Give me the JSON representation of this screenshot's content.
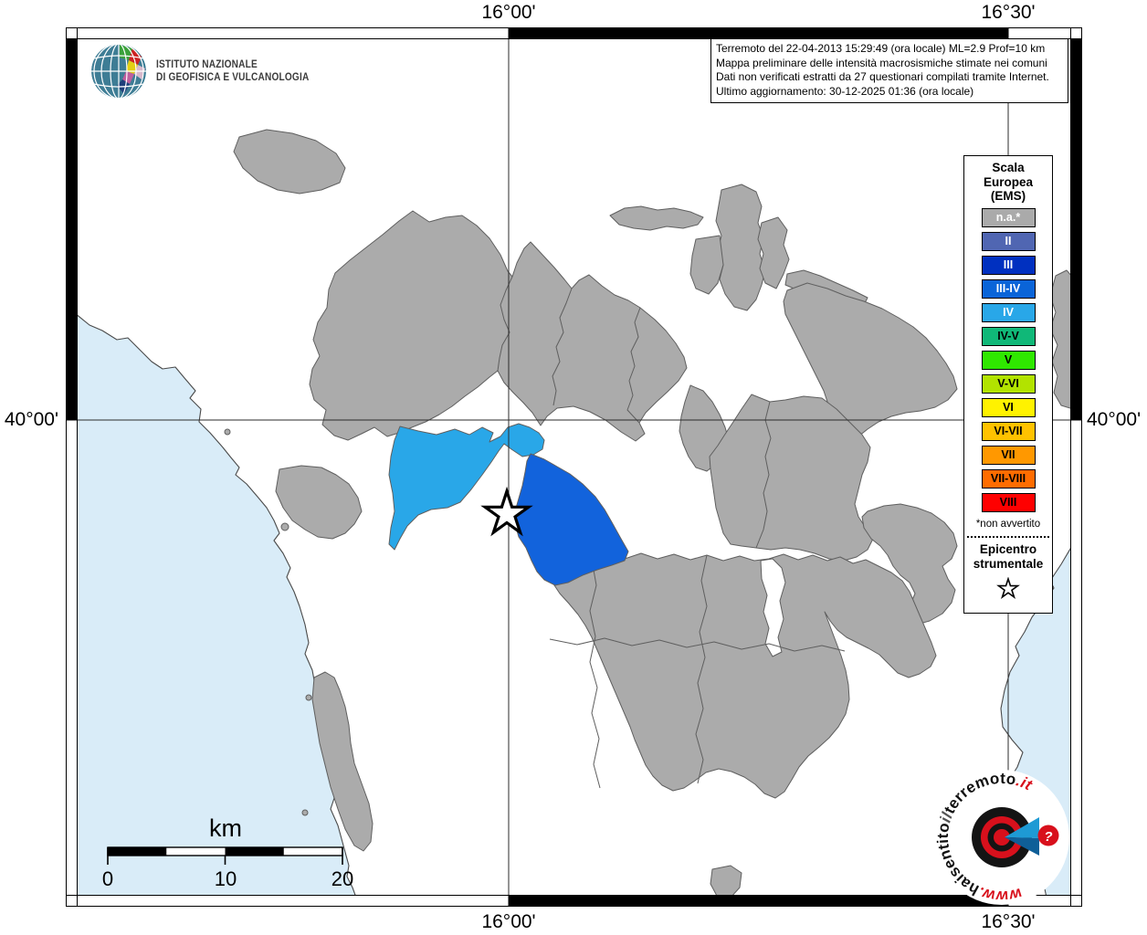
{
  "axis": {
    "top_left": "16°00'",
    "top_right": "16°30'",
    "bottom_left": "16°00'",
    "bottom_right": "16°30'",
    "left": "40°00'",
    "right": "40°00'"
  },
  "header": {
    "ingv_line1": "ISTITUTO NAZIONALE",
    "ingv_line2": "DI GEOFISICA E VULCANOLOGIA"
  },
  "infobox": {
    "lines": [
      "Terremoto del 22-04-2013 15:29:49 (ora locale) ML=2.9 Prof=10 km",
      "Mappa preliminare delle intensità macrosismiche stimate nei comuni",
      "Dati non verificati estratti da 27 questionari compilati tramite Internet.",
      "Ultimo aggiornamento: 30-12-2025 01:36 (ora locale)"
    ]
  },
  "legend": {
    "title_lines": [
      "Scala",
      "Europea",
      "(EMS)"
    ],
    "items": [
      {
        "label": "n.a.*",
        "color": "#AAAAAA",
        "text": "#FFFFFF"
      },
      {
        "label": "II",
        "color": "#5066B2",
        "text": "#FFFFFF"
      },
      {
        "label": "III",
        "color": "#0030C0",
        "text": "#FFFFFF"
      },
      {
        "label": "III-IV",
        "color": "#0A64D8",
        "text": "#FFFFFF"
      },
      {
        "label": "IV",
        "color": "#29A7E8",
        "text": "#FFFFFF"
      },
      {
        "label": "IV-V",
        "color": "#10B878",
        "text": "#000000"
      },
      {
        "label": "V",
        "color": "#2FE800",
        "text": "#000000"
      },
      {
        "label": "V-VI",
        "color": "#B2E300",
        "text": "#000000"
      },
      {
        "label": "VI",
        "color": "#FFF200",
        "text": "#000000"
      },
      {
        "label": "VI-VII",
        "color": "#FFC200",
        "text": "#000000"
      },
      {
        "label": "VII",
        "color": "#FF9800",
        "text": "#000000"
      },
      {
        "label": "VII-VIII",
        "color": "#FF6C00",
        "text": "#000000"
      },
      {
        "label": "VIII",
        "color": "#FE0000",
        "text": "#000000"
      }
    ],
    "footnote": "*non avvertito",
    "epicenter_label_1": "Epicentro",
    "epicenter_label_2": "strumentale"
  },
  "scalebar": {
    "unit": "km",
    "ticks": [
      "0",
      "10",
      "20"
    ]
  },
  "watermark": {
    "prefix": "www.",
    "word1": "haisentito",
    "word2": "il",
    "word3": "terremoto",
    "suffix": ".it",
    "question": "?"
  },
  "map": {
    "colors": {
      "sea": "#D9ECF8",
      "land": "#FFFFFF",
      "na_gray": "#ABABAB",
      "muni_iv": "#29A7E8",
      "muni_iii_iv": "#1263DC",
      "star_fill": "#FFFFFF",
      "logo_red": "#D8101C",
      "logo_blue_light": "#1E9AD4",
      "logo_blue_dark": "#0F5F98"
    }
  }
}
